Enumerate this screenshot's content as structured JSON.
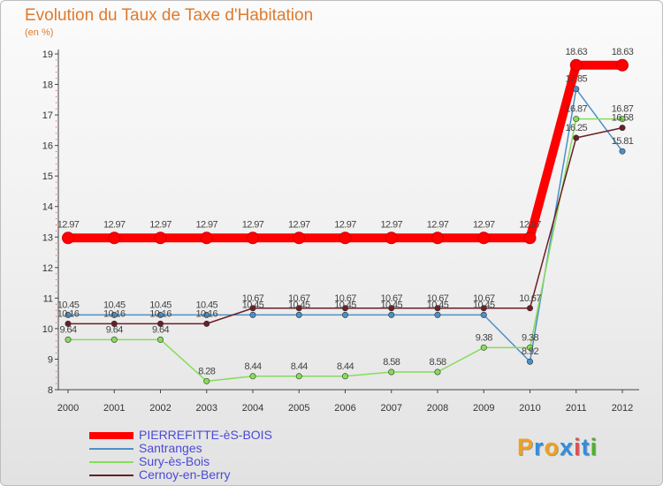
{
  "title": "Evolution du Taux de Taxe d'Habitation",
  "unit": "(en %)",
  "logo_text": "Proxiti",
  "chart_data": {
    "type": "line",
    "title": "Evolution du Taux de Taxe d'Habitation",
    "ylabel": "(en %)",
    "xlabel": "",
    "x": [
      "2000",
      "2001",
      "2002",
      "2003",
      "2004",
      "2005",
      "2006",
      "2007",
      "2008",
      "2009",
      "2010",
      "2011",
      "2012"
    ],
    "ylim": [
      8,
      19
    ],
    "yticks": [
      "8",
      "9",
      "10",
      "11",
      "12",
      "13",
      "14",
      "15",
      "16",
      "17",
      "18",
      "19"
    ],
    "grid": false,
    "legend_position": "bottom-left",
    "series": [
      {
        "name": "PIERREFITTE-èS-BOIS",
        "color": "#ff0000",
        "labels": [
          "12.97",
          "12.97",
          "12.97",
          "12.97",
          "12.97",
          "12.97",
          "12.97",
          "12.97",
          "12.97",
          "12.97",
          "12.97",
          "18.63",
          "18.63"
        ],
        "values": [
          12.97,
          12.97,
          12.97,
          12.97,
          12.97,
          12.97,
          12.97,
          12.97,
          12.97,
          12.97,
          12.97,
          18.63,
          18.63
        ]
      },
      {
        "name": "Santranges",
        "color": "#4a90c8",
        "labels": [
          "10.45",
          "10.45",
          "10.45",
          "10.45",
          "10.45",
          "10.45",
          "10.45",
          "10.45",
          "10.45",
          "10.45",
          "8.92",
          "17.85",
          "15.81"
        ],
        "values": [
          10.45,
          10.45,
          10.45,
          10.45,
          10.45,
          10.45,
          10.45,
          10.45,
          10.45,
          10.45,
          8.92,
          17.85,
          15.81
        ]
      },
      {
        "name": "Sury-ès-Bois",
        "color": "#86dc5a",
        "labels": [
          "9.64",
          "9.64",
          "9.64",
          "8.28",
          "8.44",
          "8.44",
          "8.44",
          "8.58",
          "8.58",
          "9.38",
          "9.38",
          "16.87",
          "16.87"
        ],
        "values": [
          9.64,
          9.64,
          9.64,
          8.28,
          8.44,
          8.44,
          8.44,
          8.58,
          8.58,
          9.38,
          9.38,
          16.87,
          16.87
        ]
      },
      {
        "name": "Cernoy-en-Berry",
        "color": "#6b1e24",
        "labels": [
          "10.16",
          "10.16",
          "10.16",
          "10.16",
          "10.67",
          "10.67",
          "10.67",
          "10.67",
          "10.67",
          "10.67",
          "10.67",
          "16.25",
          "16.58"
        ],
        "values": [
          10.16,
          10.16,
          10.16,
          10.16,
          10.67,
          10.67,
          10.67,
          10.67,
          10.67,
          10.67,
          10.67,
          16.25,
          16.58
        ]
      }
    ]
  }
}
